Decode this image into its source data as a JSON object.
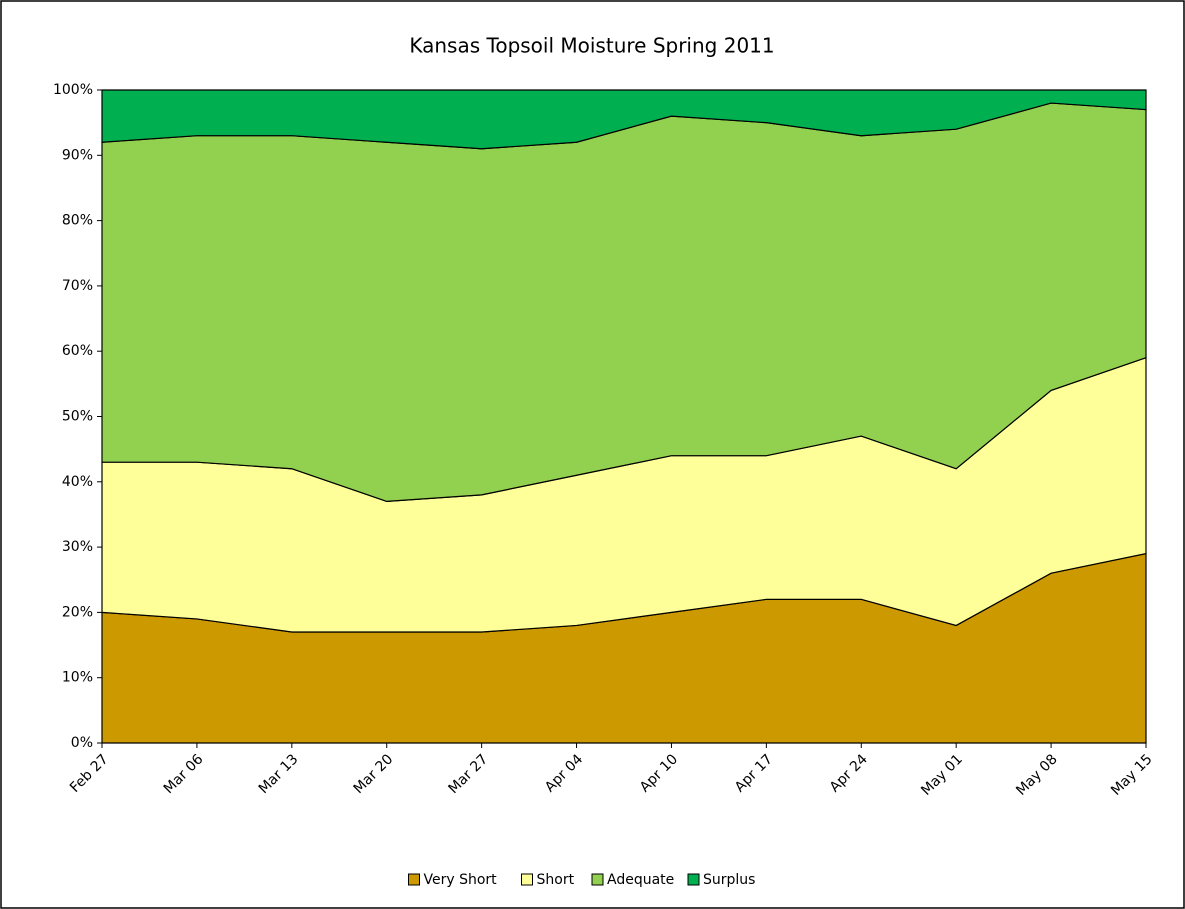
{
  "chart_data": {
    "type": "stacked_area",
    "title": "Kansas Topsoil Moisture Spring 2011",
    "categories": [
      "Feb 27",
      "Mar 06",
      "Mar 13",
      "Mar 20",
      "Mar 27",
      "Apr 04",
      "Apr 10",
      "Apr 17",
      "Apr 24",
      "May 01",
      "May 08",
      "May 15"
    ],
    "series": [
      {
        "name": "Very Short",
        "color": "#cc9900",
        "values": [
          20,
          19,
          17,
          17,
          17,
          18,
          20,
          22,
          22,
          18,
          26,
          29
        ]
      },
      {
        "name": "Short",
        "color": "#ffff99",
        "values": [
          23,
          24,
          25,
          20,
          21,
          23,
          24,
          22,
          25,
          24,
          28,
          30
        ]
      },
      {
        "name": "Adequate",
        "color": "#92d050",
        "values": [
          49,
          50,
          51,
          55,
          53,
          51,
          52,
          51,
          46,
          52,
          44,
          38
        ]
      },
      {
        "name": "Surplus",
        "color": "#00b050",
        "values": [
          8,
          7,
          7,
          8,
          9,
          8,
          4,
          5,
          7,
          6,
          2,
          3
        ]
      }
    ],
    "ylim": [
      0,
      100
    ],
    "yticks": [
      {
        "value": 0,
        "label": "0%"
      },
      {
        "value": 10,
        "label": "10%"
      },
      {
        "value": 20,
        "label": "20%"
      },
      {
        "value": 30,
        "label": "30%"
      },
      {
        "value": 40,
        "label": "40%"
      },
      {
        "value": 50,
        "label": "50%"
      },
      {
        "value": 60,
        "label": "60%"
      },
      {
        "value": 70,
        "label": "70%"
      },
      {
        "value": 80,
        "label": "80%"
      },
      {
        "value": 90,
        "label": "90%"
      },
      {
        "value": 100,
        "label": "100%"
      }
    ],
    "legend": "bottom"
  }
}
